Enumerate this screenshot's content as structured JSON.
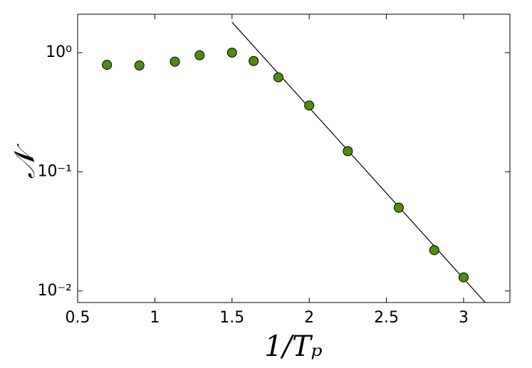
{
  "chart_data": {
    "type": "scatter",
    "xlabel": "1/Tₚ",
    "ylabel": "𝒩",
    "series": [
      {
        "type": "scatter",
        "color": "#4d8c0f",
        "x": [
          0.69,
          0.9,
          1.13,
          1.29,
          1.5,
          1.64,
          1.8,
          2.0,
          2.25,
          2.58,
          2.81,
          3.0
        ],
        "values": [
          0.79,
          0.78,
          0.84,
          0.95,
          1.0,
          0.85,
          0.62,
          0.36,
          0.149,
          0.05,
          0.022,
          0.013
        ]
      },
      {
        "type": "line",
        "color": "#000000",
        "x": [
          1.5,
          3.14
        ],
        "values": [
          1.8,
          0.008
        ]
      }
    ],
    "xlim": [
      0.5,
      3.3
    ],
    "xticks": [
      0.5,
      1,
      1.5,
      2,
      2.5,
      3
    ],
    "ylim": [
      0.008,
      2.1
    ],
    "ylog": true,
    "yticks": [
      {
        "value": 1,
        "label": "10⁰"
      },
      {
        "value": 0.1,
        "label": "10⁻¹"
      },
      {
        "value": 0.01,
        "label": "10⁻²"
      }
    ]
  }
}
